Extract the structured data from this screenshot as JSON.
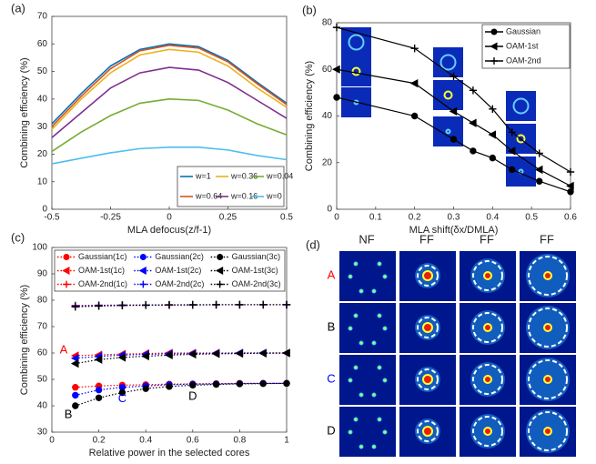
{
  "chart_data": [
    {
      "type": "line",
      "panel_label": "(a)",
      "x_label": "MLA defocus(z/f-1)",
      "y_label": "Combining efficiency (%)",
      "x": [
        -0.5,
        -0.375,
        -0.25,
        -0.125,
        0,
        0.125,
        0.25,
        0.375,
        0.5
      ],
      "xlim": [
        -0.5,
        0.5
      ],
      "xticks": [
        -0.5,
        -0.25,
        0,
        0.25,
        0.5
      ],
      "ylim": [
        0,
        70
      ],
      "yticks": [
        0,
        10,
        20,
        30,
        40,
        50,
        60,
        70
      ],
      "legend": "lower right",
      "series": [
        {
          "name": "w=1",
          "color": "#0072bd",
          "values": [
            31,
            42,
            52,
            58,
            60,
            59,
            54,
            46,
            38.5
          ]
        },
        {
          "name": "w=0.64",
          "color": "#d95319",
          "values": [
            30,
            41,
            51,
            57.5,
            59.5,
            58.5,
            53.5,
            45.5,
            38
          ]
        },
        {
          "name": "w=0.36",
          "color": "#edb120",
          "values": [
            29,
            40,
            49.5,
            56,
            58,
            57,
            52,
            44,
            37
          ]
        },
        {
          "name": "w=0.16",
          "color": "#7e2f8e",
          "values": [
            26,
            35,
            44,
            49.5,
            51.5,
            50.5,
            46,
            39.5,
            33
          ]
        },
        {
          "name": "w=0.04",
          "color": "#77ac30",
          "values": [
            21,
            28,
            34,
            38.5,
            40,
            39.5,
            36,
            31,
            27
          ]
        },
        {
          "name": "w=0",
          "color": "#4dbeee",
          "values": [
            16.5,
            18.5,
            20.5,
            22,
            22.5,
            22.5,
            21.5,
            19.5,
            18
          ]
        }
      ]
    },
    {
      "type": "line",
      "panel_label": "(b)",
      "x_label": "MLA shift(δx/DMLA)",
      "y_label": "Combining efficiency (%)",
      "x": [
        0,
        0.2,
        0.3,
        0.35,
        0.4,
        0.45,
        0.52,
        0.6
      ],
      "xlim": [
        0,
        0.6
      ],
      "xticks": [
        0,
        0.1,
        0.2,
        0.3,
        0.4,
        0.5,
        0.6
      ],
      "ylim": [
        0,
        80
      ],
      "yticks": [
        0,
        20,
        40,
        60,
        80
      ],
      "legend": "upper right",
      "series": [
        {
          "name": "Gaussian",
          "color": "#000000",
          "marker": "circle",
          "values": [
            48,
            40,
            30,
            25,
            22,
            17,
            12,
            7.5
          ]
        },
        {
          "name": "OAM-1st",
          "color": "#000000",
          "marker": "triangle-left",
          "values": [
            60,
            54,
            42,
            37,
            32,
            25,
            17,
            10
          ]
        },
        {
          "name": "OAM-2nd",
          "color": "#000000",
          "marker": "plus",
          "values": [
            78,
            69,
            57,
            51,
            43,
            33,
            24,
            16
          ]
        }
      ]
    },
    {
      "type": "line",
      "panel_label": "(c)",
      "x_label": "Relative power in the selected cores",
      "y_label": "Combining efficiency (%)",
      "x": [
        0.1,
        0.2,
        0.3,
        0.4,
        0.5,
        0.6,
        0.7,
        0.8,
        0.9,
        1
      ],
      "xlim": [
        0,
        1
      ],
      "xticks": [
        0,
        0.2,
        0.4,
        0.6,
        0.8,
        1
      ],
      "ylim": [
        30,
        100
      ],
      "yticks": [
        30,
        40,
        50,
        60,
        70,
        80,
        90,
        100
      ],
      "legend": "upper left",
      "line_style": "dotted",
      "series": [
        {
          "name": "Gaussian(1c)",
          "color": "#ff0000",
          "marker": "circle",
          "values": [
            47,
            47.5,
            47.8,
            48,
            48.2,
            48.3,
            48.4,
            48.5,
            48.5,
            48.5
          ]
        },
        {
          "name": "OAM-1st(1c)",
          "color": "#ff0000",
          "marker": "triangle-left",
          "values": [
            59,
            59.3,
            59.6,
            59.8,
            60,
            60,
            60,
            60,
            60,
            60
          ]
        },
        {
          "name": "OAM-2nd(1c)",
          "color": "#ff0000",
          "marker": "plus",
          "values": [
            78,
            78.1,
            78.2,
            78.2,
            78.3,
            78.3,
            78.3,
            78.3,
            78.3,
            78.3
          ]
        },
        {
          "name": "Gaussian(2c)",
          "color": "#0000ff",
          "marker": "circle",
          "values": [
            44,
            46,
            47,
            47.5,
            48,
            48.2,
            48.3,
            48.4,
            48.5,
            48.5
          ]
        },
        {
          "name": "OAM-1st(2c)",
          "color": "#0000ff",
          "marker": "triangle-left",
          "values": [
            58,
            58.7,
            59.2,
            59.5,
            59.7,
            59.8,
            59.9,
            60,
            60,
            60
          ]
        },
        {
          "name": "OAM-2nd(2c)",
          "color": "#0000ff",
          "marker": "plus",
          "values": [
            77.8,
            78,
            78.1,
            78.2,
            78.2,
            78.3,
            78.3,
            78.3,
            78.3,
            78.3
          ]
        },
        {
          "name": "Gaussian(3c)",
          "color": "#000000",
          "marker": "circle",
          "values": [
            40,
            43,
            45,
            46.5,
            47.3,
            47.8,
            48.1,
            48.3,
            48.4,
            48.5
          ]
        },
        {
          "name": "OAM-1st(3c)",
          "color": "#000000",
          "marker": "triangle-left",
          "values": [
            56,
            57.5,
            58.3,
            58.8,
            59.2,
            59.5,
            59.7,
            59.8,
            59.9,
            60
          ]
        },
        {
          "name": "OAM-2nd(3c)",
          "color": "#000000",
          "marker": "plus",
          "values": [
            77.5,
            77.8,
            78,
            78.1,
            78.2,
            78.2,
            78.3,
            78.3,
            78.3,
            78.3
          ]
        }
      ],
      "annotations": [
        {
          "text": "A",
          "x": 0.05,
          "y": 61,
          "color": "#ff0000"
        },
        {
          "text": "B",
          "x": 0.07,
          "y": 36.5,
          "color": "#000000"
        },
        {
          "text": "C",
          "x": 0.3,
          "y": 42.5,
          "color": "#0000ff"
        },
        {
          "text": "D",
          "x": 0.6,
          "y": 43.5,
          "color": "#000000"
        }
      ]
    }
  ],
  "image_panel": {
    "panel_label": "(d)",
    "columns": [
      "NF",
      "FF",
      "FF",
      "FF"
    ],
    "rows": [
      {
        "label": "A",
        "color": "#ff0000"
      },
      {
        "label": "B",
        "color": "#000000"
      },
      {
        "label": "C",
        "color": "#0000ff"
      },
      {
        "label": "D",
        "color": "#000000"
      }
    ]
  }
}
